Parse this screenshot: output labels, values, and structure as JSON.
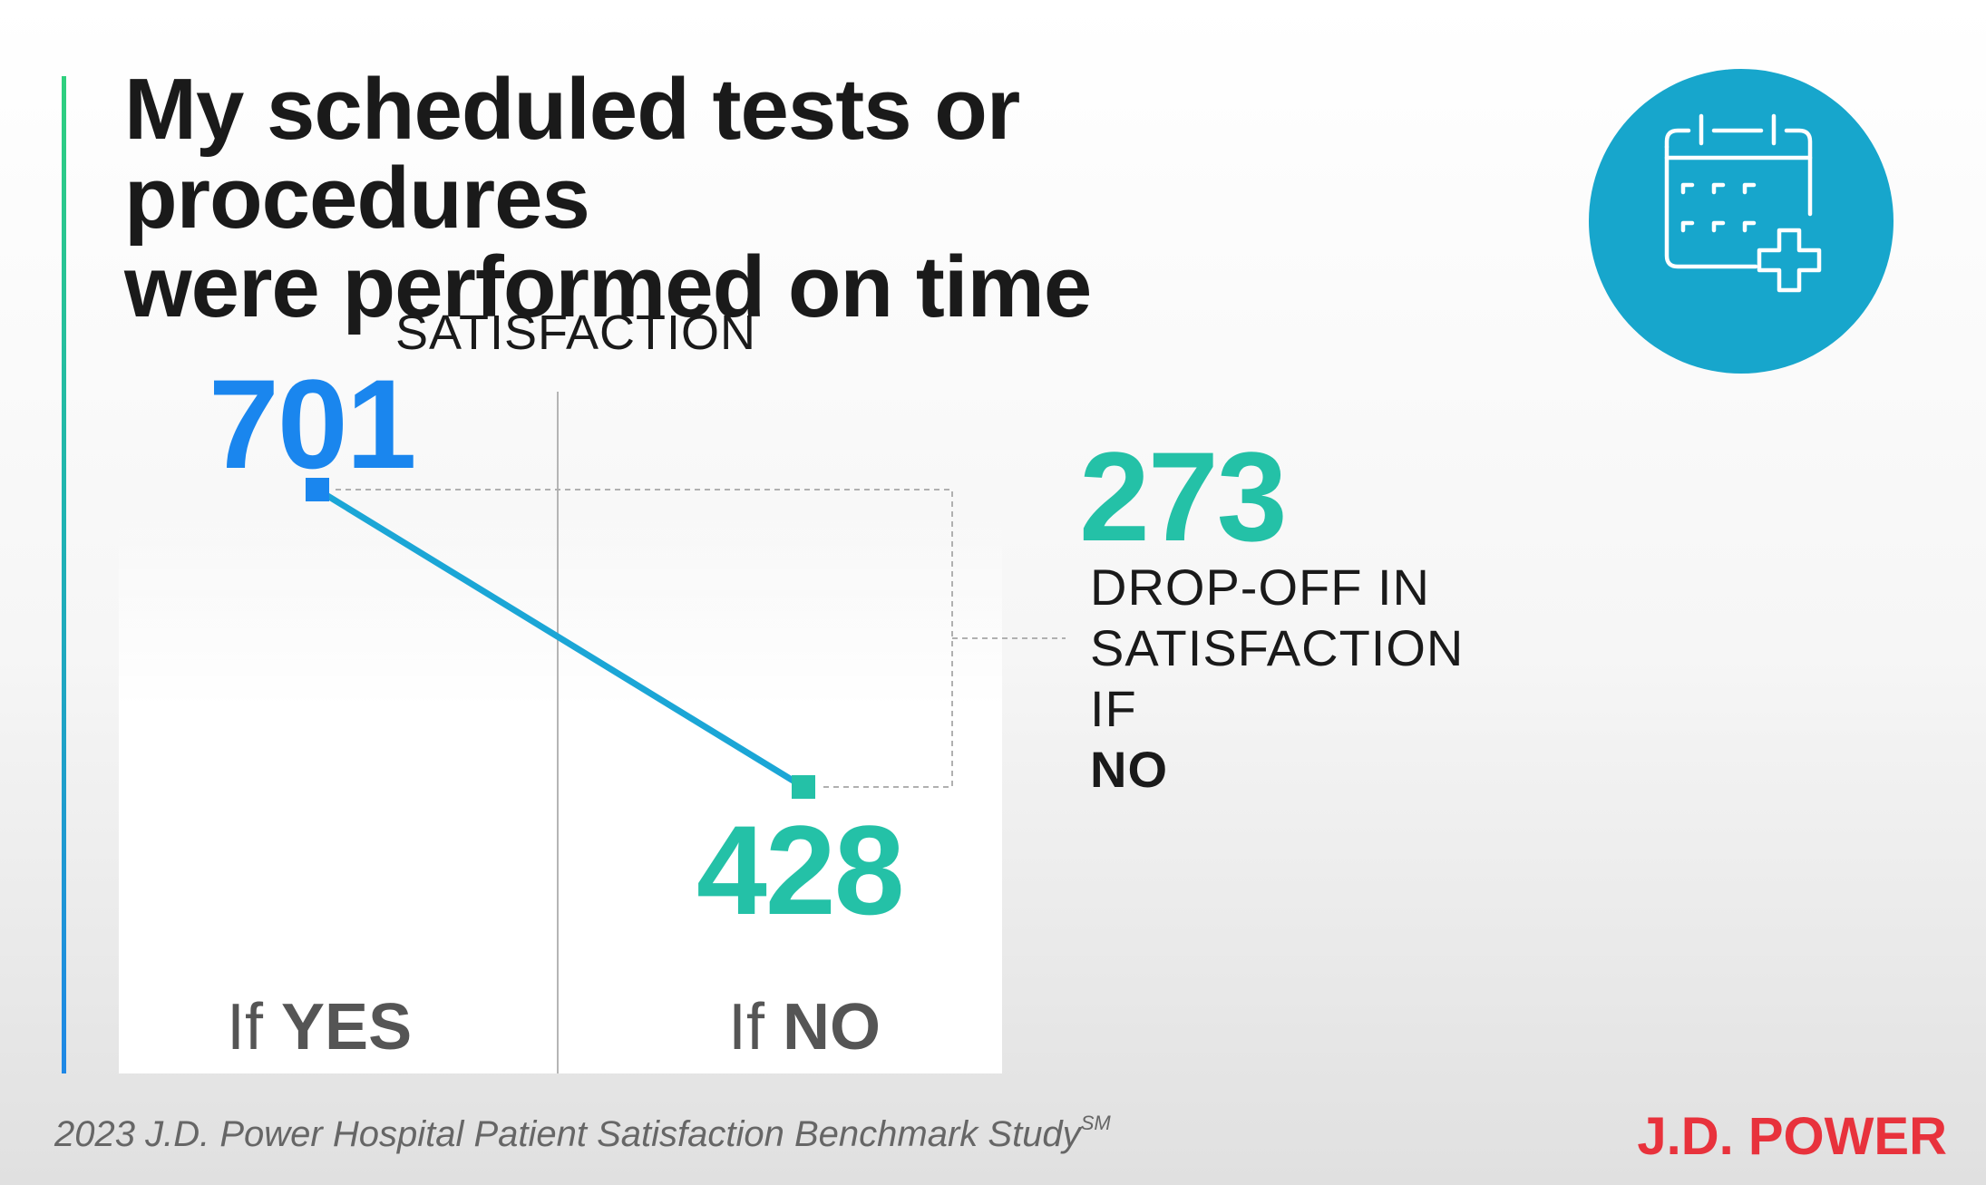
{
  "title_lines": [
    "My scheduled tests or procedures",
    "were performed on time"
  ],
  "icon": "calendar-plus-icon",
  "colors": {
    "accent_green": "#2fd07e",
    "accent_blue": "#1e87e6",
    "yes_blue": "#1a86ee",
    "no_teal": "#24c1a7",
    "line": "#1ba6d6",
    "icon_circle": "#17a6cc",
    "brand_red": "#e8323c"
  },
  "chart_data": {
    "type": "line",
    "ylabel": "SATISFACTION",
    "categories": [
      {
        "prefix": "If ",
        "emphasis": "YES"
      },
      {
        "prefix": "If ",
        "emphasis": "NO"
      }
    ],
    "series": [
      {
        "values": [
          701,
          428
        ],
        "value_labels": [
          "701",
          "428"
        ]
      }
    ],
    "ylim": [
      428,
      701
    ],
    "annotation": {
      "value": "273",
      "lines": [
        "DROP-OFF IN",
        "SATISFACTION"
      ],
      "last_prefix": "IF ",
      "last_emphasis": "NO"
    }
  },
  "footer": {
    "study": "2023 J.D. Power Hospital Patient Satisfaction Benchmark Study",
    "mark": "SM"
  },
  "brand": "J.D. POWER"
}
